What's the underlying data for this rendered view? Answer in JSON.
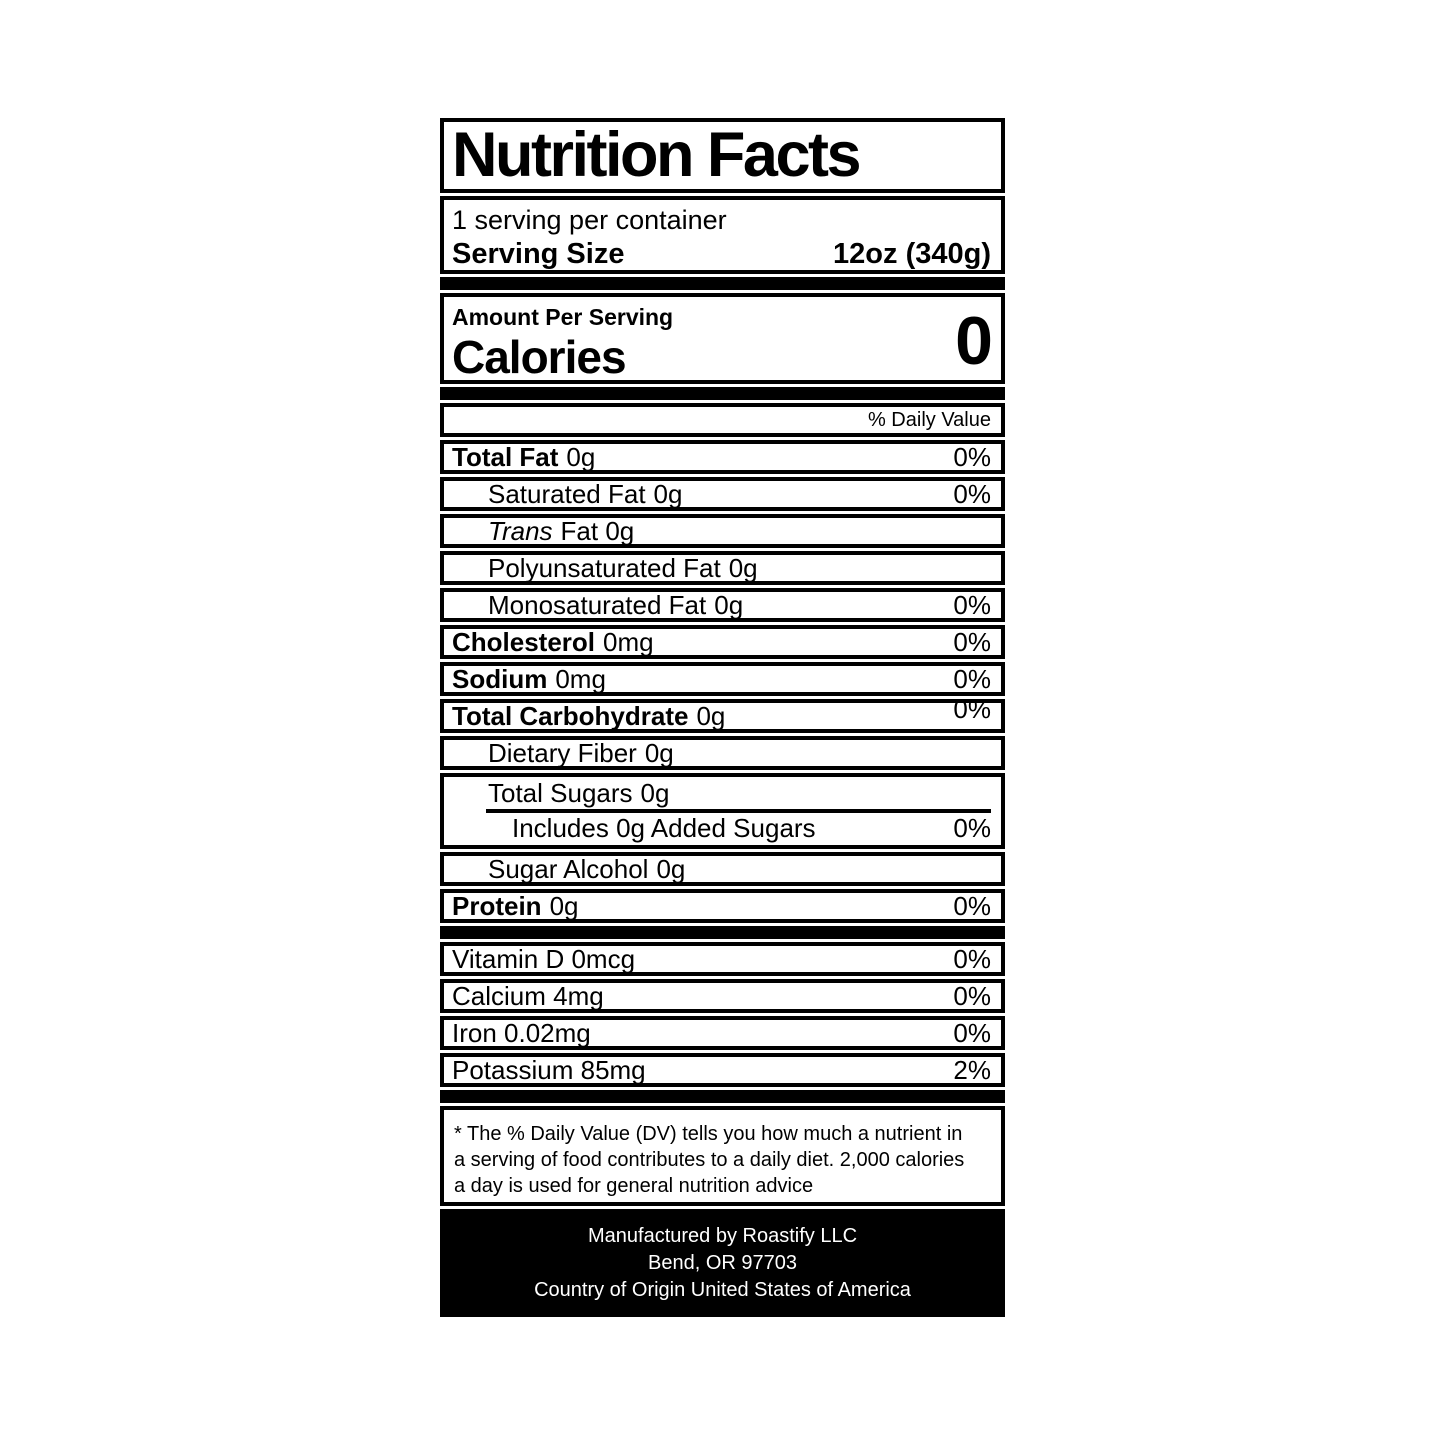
{
  "nutrition_label": {
    "title": "Nutrition Facts",
    "servings_per_container": "1 serving per container",
    "serving_size": {
      "label": "Serving Size",
      "value": "12oz (340g)"
    },
    "amount_per_serving": "Amount Per Serving",
    "calories": {
      "label": "Calories",
      "value": "0"
    },
    "daily_value_header": "% Daily Value",
    "nutrient_rows": [
      {
        "name": "Total Fat",
        "amount": "0g",
        "dv": "0%"
      },
      {
        "name": "Saturated Fat",
        "amount": "0g",
        "dv": "0%"
      },
      {
        "name": "Trans",
        "amount": "Fat 0g",
        "dv": ""
      },
      {
        "name": "Polyunsaturated Fat",
        "amount": "0g",
        "dv": ""
      },
      {
        "name": "Monosaturated Fat",
        "amount": "0g",
        "dv": "0%"
      },
      {
        "name": "Cholesterol",
        "amount": "0mg",
        "dv": "0%"
      },
      {
        "name": "Sodium",
        "amount": "0mg",
        "dv": "0%"
      },
      {
        "name": "Total Carbohydrate",
        "amount": "0g",
        "dv": "0%"
      },
      {
        "name": "Dietary Fiber",
        "amount": "0g",
        "dv": ""
      }
    ],
    "sugars": {
      "total_name": "Total Sugars",
      "total_amount": "0g",
      "added_name": "Includes 0g Added Sugars",
      "added_dv": "0%"
    },
    "post_sugar_rows": [
      {
        "name": "Sugar Alcohol",
        "amount": "0g",
        "dv": ""
      },
      {
        "name": "Protein",
        "amount": "0g",
        "dv": "0%"
      }
    ],
    "vitamin_rows": [
      {
        "name": "Vitamin D 0mcg",
        "dv": "0%"
      },
      {
        "name": "Calcium 4mg",
        "dv": "0%"
      },
      {
        "name": "Iron 0.02mg",
        "dv": "0%"
      },
      {
        "name": "Potassium 85mg",
        "dv": "2%"
      }
    ],
    "footnote_lines": [
      "* The % Daily Value (DV) tells you how much a nutrient in",
      "a serving of food contributes to a daily diet. 2,000 calories",
      "a day is used for general nutrition advice"
    ],
    "footer_lines": [
      "Manufactured by Roastify LLC",
      "Bend, OR 97703",
      "Country of Origin United States of America"
    ]
  }
}
